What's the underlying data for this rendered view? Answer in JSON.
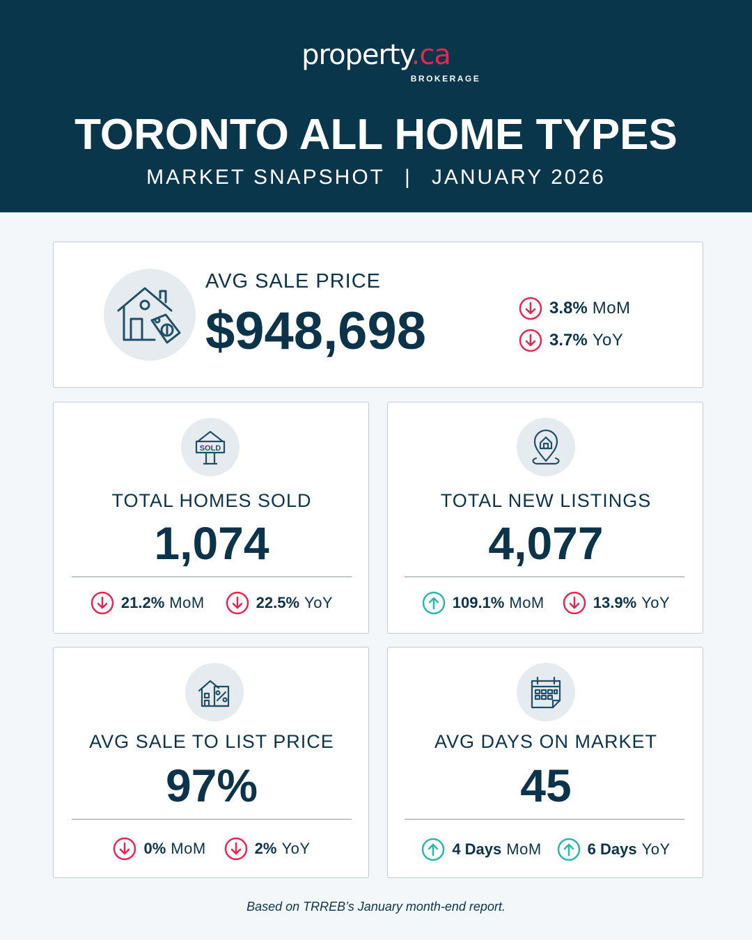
{
  "brand": {
    "name": "property",
    "dot": ".",
    "tld": "ca",
    "tagline": "BROKERAGE"
  },
  "header": {
    "title": "TORONTO ALL HOME TYPES",
    "subtitle_left": "MARKET SNAPSHOT",
    "subtitle_sep": "|",
    "subtitle_right": "JANUARY 2026"
  },
  "colors": {
    "header_bg": "#0a364b",
    "down": "#e5274f",
    "up": "#2bb5ad",
    "text": "#0b3349"
  },
  "avg_sale_price": {
    "icon": "house-price-tag-icon",
    "label": "AVG SALE PRICE",
    "value": "$948,698",
    "mom": {
      "direction": "down",
      "value": "3.8%",
      "unit": "MoM"
    },
    "yoy": {
      "direction": "down",
      "value": "3.7%",
      "unit": "YoY"
    }
  },
  "homes_sold": {
    "icon": "sold-sign-icon",
    "label": "TOTAL HOMES SOLD",
    "value": "1,074",
    "mom": {
      "direction": "down",
      "value": "21.2%",
      "unit": "MoM"
    },
    "yoy": {
      "direction": "down",
      "value": "22.5%",
      "unit": "YoY"
    }
  },
  "new_listings": {
    "icon": "location-house-pin-icon",
    "label": "TOTAL NEW LISTINGS",
    "value": "4,077",
    "mom": {
      "direction": "up",
      "value": "109.1%",
      "unit": "MoM"
    },
    "yoy": {
      "direction": "down",
      "value": "13.9%",
      "unit": "YoY"
    }
  },
  "sale_to_list": {
    "icon": "building-percent-icon",
    "label": "AVG SALE TO LIST PRICE",
    "value": "97%",
    "mom": {
      "direction": "down",
      "value": "0%",
      "unit": "MoM"
    },
    "yoy": {
      "direction": "down",
      "value": "2%",
      "unit": "YoY"
    }
  },
  "days_on_market": {
    "icon": "calendar-icon",
    "label": "AVG DAYS ON MARKET",
    "value": "45",
    "mom": {
      "direction": "up",
      "value": "4 Days",
      "unit": "MoM"
    },
    "yoy": {
      "direction": "up",
      "value": "6 Days",
      "unit": "YoY"
    }
  },
  "footer": "Based on TRREB’s January month-end report."
}
